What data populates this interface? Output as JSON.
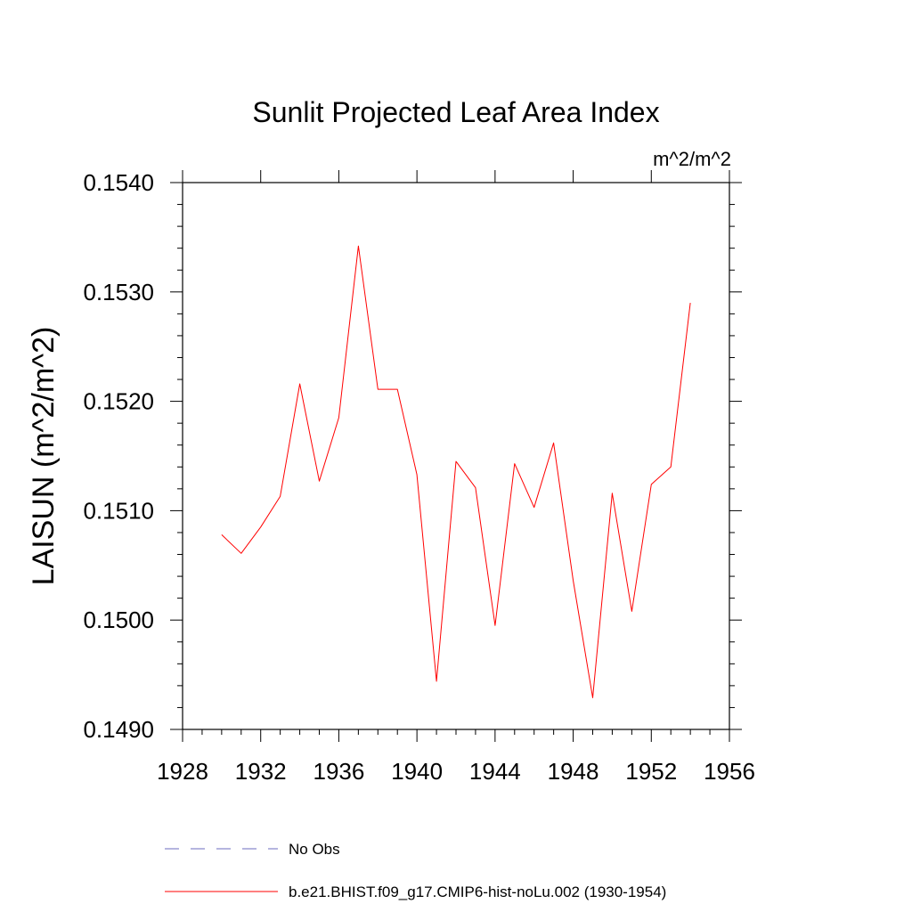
{
  "chart_data": {
    "type": "line",
    "title": "Sunlit Projected Leaf Area Index",
    "units": "m^2/m^2",
    "ylabel": "LAISUN  (m^2/m^2)",
    "xlabel": "",
    "xlim": [
      1928,
      1956
    ],
    "ylim": [
      0.149,
      0.154
    ],
    "xticks": [
      1928,
      1932,
      1936,
      1940,
      1944,
      1948,
      1952,
      1956
    ],
    "xtick_labels": [
      "1928",
      "1932",
      "1936",
      "1940",
      "1944",
      "1948",
      "1952",
      "1956"
    ],
    "yticks": [
      0.149,
      0.15,
      0.151,
      0.152,
      0.153,
      0.154
    ],
    "ytick_labels": [
      "0.1490",
      "0.1500",
      "0.1510",
      "0.1520",
      "0.1530",
      "0.1540"
    ],
    "grid": false,
    "legend_position": "bottom",
    "series": [
      {
        "name": "b.e21.BHIST.f09_g17.CMIP6-hist-noLu.002 (1930-1954)",
        "color": "#ff0000",
        "style": "solid",
        "x": [
          1930,
          1931,
          1932,
          1933,
          1934,
          1935,
          1936,
          1937,
          1938,
          1939,
          1940,
          1941,
          1942,
          1943,
          1944,
          1945,
          1946,
          1947,
          1948,
          1949,
          1950,
          1951,
          1952,
          1953,
          1954
        ],
        "y": [
          0.15078,
          0.15061,
          0.15085,
          0.15113,
          0.15216,
          0.15127,
          0.15185,
          0.15342,
          0.15211,
          0.15211,
          0.15133,
          0.14944,
          0.15145,
          0.15121,
          0.14995,
          0.15143,
          0.15103,
          0.15162,
          0.15036,
          0.14929,
          0.15116,
          0.15008,
          0.15124,
          0.1514,
          0.1529
        ]
      }
    ],
    "legend": [
      {
        "label": "No Obs",
        "color": "#6b6bbf",
        "style": "dashed"
      },
      {
        "label": "b.e21.BHIST.f09_g17.CMIP6-hist-noLu.002 (1930-1954)",
        "color": "#ff0000",
        "style": "solid"
      }
    ]
  }
}
